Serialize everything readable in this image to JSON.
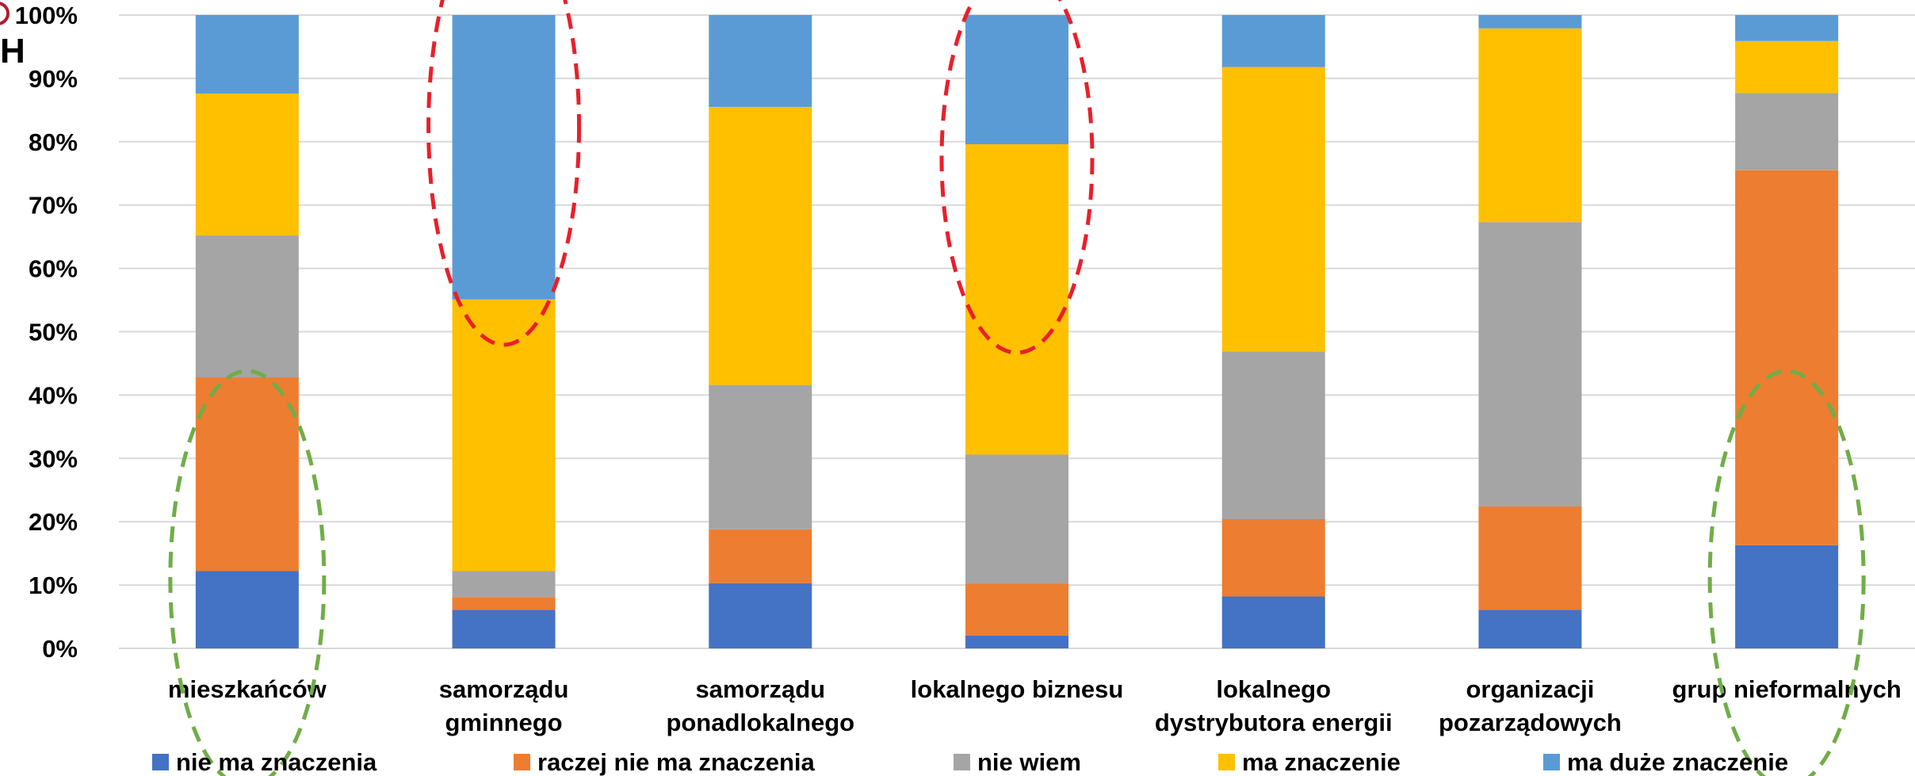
{
  "chart_data": {
    "type": "bar",
    "stacked": true,
    "normalized": true,
    "title": "",
    "xlabel": "",
    "ylabel": "",
    "ylim": [
      0,
      100
    ],
    "yticks": [
      "0%",
      "10%",
      "20%",
      "30%",
      "40%",
      "50%",
      "60%",
      "70%",
      "80%",
      "90%",
      "100%"
    ],
    "categories": [
      [
        "mieszkańców"
      ],
      [
        "samorządu",
        "gminnego"
      ],
      [
        "samorządu",
        "ponadlokalnego"
      ],
      [
        "lokalnego biznesu"
      ],
      [
        "lokalnego",
        "dystrybutora energii"
      ],
      [
        "organizacji",
        "pozarządowych"
      ],
      [
        "grup nieformalnych"
      ]
    ],
    "series": [
      {
        "name": "nie ma znaczenia",
        "color": "#4472c4",
        "values": [
          12.2,
          6.1,
          10.3,
          2.0,
          8.2,
          6.1,
          16.3
        ]
      },
      {
        "name": "raczej nie ma znaczenia",
        "color": "#ed7d31",
        "values": [
          30.6,
          2.0,
          8.5,
          8.2,
          12.2,
          16.3,
          59.2
        ]
      },
      {
        "name": "nie wiem",
        "color": "#a5a5a5",
        "values": [
          22.4,
          4.1,
          22.8,
          20.4,
          26.5,
          44.9,
          12.2
        ]
      },
      {
        "name": "ma znaczenie",
        "color": "#ffc000",
        "values": [
          22.4,
          42.9,
          43.9,
          49.0,
          44.9,
          30.6,
          8.2
        ]
      },
      {
        "name": "ma duże znaczenie",
        "color": "#5b9bd5",
        "values": [
          12.4,
          44.9,
          14.5,
          20.4,
          8.2,
          2.1,
          4.1
        ]
      }
    ],
    "grid": true,
    "legend": "bottom",
    "annotations": [
      {
        "shape": "dashed-ellipse",
        "color": "#e8202a",
        "category_index": 1
      },
      {
        "shape": "dashed-ellipse",
        "color": "#e8202a",
        "category_index": 3
      },
      {
        "shape": "dashed-ellipse",
        "color": "#70ad47",
        "category_index": 0
      },
      {
        "shape": "dashed-ellipse",
        "color": "#70ad47",
        "category_index": 6
      }
    ]
  },
  "logo": {
    "letter": "H"
  }
}
